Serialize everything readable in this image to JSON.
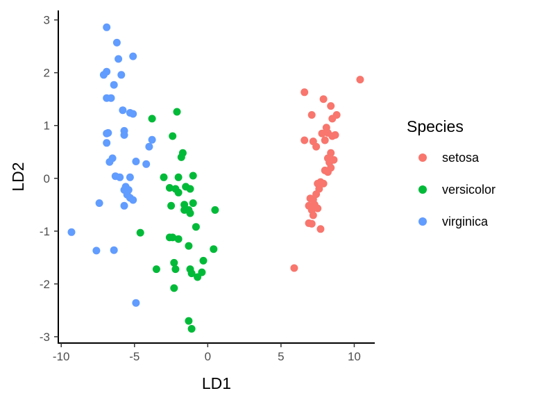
{
  "chart_data": {
    "type": "scatter",
    "title": "",
    "xlabel": "LD1",
    "ylabel": "LD2",
    "xlim": [
      -10.2,
      11.4
    ],
    "ylim": [
      -3.12,
      3.18
    ],
    "x_ticks": [
      -10,
      -5,
      0,
      5,
      10
    ],
    "x_tick_labels": [
      "-10",
      "-5",
      "0",
      "5",
      "10"
    ],
    "y_ticks": [
      -3,
      -2,
      -1,
      0,
      1,
      2,
      3
    ],
    "y_tick_labels": [
      "-3",
      "-2",
      "-1",
      "0",
      "1",
      "2",
      "3"
    ],
    "grid": false,
    "legend": {
      "title": "Species",
      "position": "right"
    },
    "series": [
      {
        "name": "setosa",
        "color": "#F8766D",
        "points": [
          [
            10.4,
            1.87
          ],
          [
            6.6,
            1.63
          ],
          [
            7.9,
            1.5
          ],
          [
            8.4,
            1.37
          ],
          [
            7.1,
            1.2
          ],
          [
            8.8,
            1.2
          ],
          [
            8.5,
            1.13
          ],
          [
            8.1,
            0.96
          ],
          [
            7.8,
            0.85
          ],
          [
            8.2,
            0.86
          ],
          [
            8.7,
            0.82
          ],
          [
            8.5,
            0.8
          ],
          [
            6.6,
            0.72
          ],
          [
            7.2,
            0.7
          ],
          [
            8.0,
            0.72
          ],
          [
            7.4,
            0.6
          ],
          [
            8.4,
            0.48
          ],
          [
            8.2,
            0.38
          ],
          [
            8.6,
            0.35
          ],
          [
            8.3,
            0.3
          ],
          [
            8.4,
            0.2
          ],
          [
            8.0,
            0.15
          ],
          [
            8.2,
            0.12
          ],
          [
            7.7,
            -0.07
          ],
          [
            7.5,
            -0.1
          ],
          [
            7.9,
            -0.1
          ],
          [
            7.6,
            -0.2
          ],
          [
            7.0,
            -0.38
          ],
          [
            7.2,
            -0.4
          ],
          [
            7.4,
            -0.3
          ],
          [
            6.9,
            -0.52
          ],
          [
            7.3,
            -0.5
          ],
          [
            7.1,
            -0.6
          ],
          [
            7.5,
            -0.57
          ],
          [
            7.2,
            -0.7
          ],
          [
            6.9,
            -0.85
          ],
          [
            7.1,
            -0.86
          ],
          [
            7.7,
            -0.96
          ],
          [
            5.9,
            -1.7
          ]
        ]
      },
      {
        "name": "versicolor",
        "color": "#00BA38",
        "points": [
          [
            -3.8,
            1.13
          ],
          [
            -2.1,
            1.26
          ],
          [
            -2.4,
            0.8
          ],
          [
            -1.7,
            0.48
          ],
          [
            -1.8,
            0.4
          ],
          [
            -3.0,
            0.02
          ],
          [
            -2.0,
            0.02
          ],
          [
            -1.0,
            0.05
          ],
          [
            -2.6,
            -0.18
          ],
          [
            -2.2,
            -0.2
          ],
          [
            -1.5,
            -0.16
          ],
          [
            -1.2,
            -0.2
          ],
          [
            -2.0,
            -0.27
          ],
          [
            -2.5,
            -0.52
          ],
          [
            -1.6,
            -0.5
          ],
          [
            -1.0,
            -0.47
          ],
          [
            -1.6,
            -0.6
          ],
          [
            -1.3,
            -0.6
          ],
          [
            -1.2,
            -0.66
          ],
          [
            0.5,
            -0.6
          ],
          [
            -0.8,
            -0.92
          ],
          [
            -4.6,
            -1.03
          ],
          [
            -2.6,
            -1.12
          ],
          [
            -2.4,
            -1.12
          ],
          [
            -2.0,
            -1.15
          ],
          [
            -1.3,
            -1.28
          ],
          [
            0.4,
            -1.34
          ],
          [
            -0.3,
            -1.56
          ],
          [
            -2.3,
            -1.6
          ],
          [
            -3.5,
            -1.72
          ],
          [
            -2.2,
            -1.72
          ],
          [
            -1.2,
            -1.72
          ],
          [
            -0.4,
            -1.78
          ],
          [
            -1.1,
            -1.8
          ],
          [
            -0.7,
            -1.87
          ],
          [
            -2.3,
            -2.08
          ],
          [
            -1.3,
            -2.7
          ],
          [
            -1.1,
            -2.85
          ]
        ]
      },
      {
        "name": "virginica",
        "color": "#619CFF",
        "points": [
          [
            -6.9,
            2.86
          ],
          [
            -6.2,
            2.57
          ],
          [
            -5.1,
            2.31
          ],
          [
            -6.1,
            2.26
          ],
          [
            -6.9,
            2.02
          ],
          [
            -7.1,
            1.96
          ],
          [
            -5.9,
            1.96
          ],
          [
            -6.4,
            1.77
          ],
          [
            -6.9,
            1.52
          ],
          [
            -6.6,
            1.52
          ],
          [
            -5.8,
            1.29
          ],
          [
            -5.3,
            1.24
          ],
          [
            -5.1,
            1.22
          ],
          [
            -6.9,
            0.85
          ],
          [
            -6.8,
            0.86
          ],
          [
            -5.7,
            0.9
          ],
          [
            -5.7,
            0.82
          ],
          [
            -3.8,
            0.73
          ],
          [
            -4.0,
            0.6
          ],
          [
            -6.9,
            0.67
          ],
          [
            -6.5,
            0.38
          ],
          [
            -6.7,
            0.31
          ],
          [
            -4.9,
            0.32
          ],
          [
            -4.2,
            0.27
          ],
          [
            -6.3,
            0.04
          ],
          [
            -6.0,
            0.02
          ],
          [
            -5.3,
            0.02
          ],
          [
            -5.6,
            -0.16
          ],
          [
            -5.7,
            -0.22
          ],
          [
            -5.4,
            -0.22
          ],
          [
            -5.5,
            -0.31
          ],
          [
            -5.3,
            -0.37
          ],
          [
            -5.1,
            -0.41
          ],
          [
            -5.7,
            -0.52
          ],
          [
            -7.4,
            -0.47
          ],
          [
            -9.3,
            -1.02
          ],
          [
            -7.6,
            -1.37
          ],
          [
            -6.4,
            -1.36
          ],
          [
            -4.9,
            -2.36
          ]
        ]
      }
    ]
  }
}
